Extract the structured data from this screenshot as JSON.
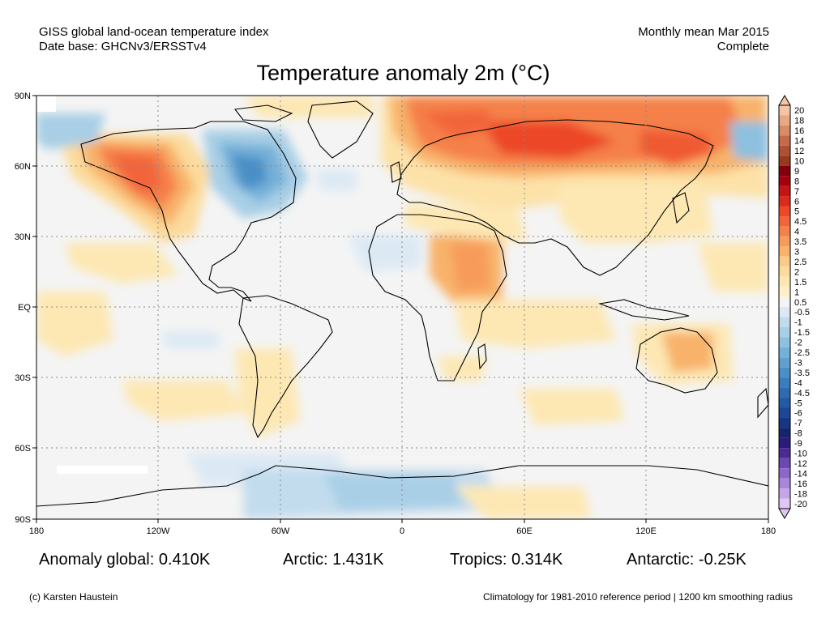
{
  "header": {
    "source_line1": "GISS global land-ocean temperature index",
    "source_line2": "Date base: GHCNv3/ERSSTv4",
    "period_line1": "Monthly mean Mar 2015",
    "period_line2": "Complete"
  },
  "title": "Temperature anomaly 2m (°C)",
  "axes": {
    "lat_labels": [
      "90N",
      "60N",
      "30N",
      "EQ",
      "30S",
      "60S",
      "90S"
    ],
    "lon_labels": [
      "180",
      "120W",
      "60W",
      "0",
      "60E",
      "120E",
      "180"
    ]
  },
  "colorbar": {
    "labels": [
      "20",
      "18",
      "16",
      "14",
      "12",
      "10",
      "9",
      "8",
      "7",
      "6",
      "5",
      "4.5",
      "4",
      "3.5",
      "3",
      "2.5",
      "2",
      "1.5",
      "1",
      "0.5",
      "-0.5",
      "-1",
      "-1.5",
      "-2",
      "-2.5",
      "-3",
      "-3.5",
      "-4",
      "-4.5",
      "-5",
      "-6",
      "-7",
      "-8",
      "-9",
      "-10",
      "-12",
      "-14",
      "-16",
      "-18",
      "-20"
    ],
    "colors": [
      "#f4c4a4",
      "#e9a884",
      "#d98a66",
      "#c46c4a",
      "#ad5034",
      "#96391f",
      "#82000c",
      "#a4000f",
      "#c41515",
      "#dc2a1d",
      "#ec4728",
      "#f2653a",
      "#f5804a",
      "#f79b5a",
      "#f8b26a",
      "#facb86",
      "#fcdb9c",
      "#fde8b4",
      "#feefc8",
      "#f4f4f4",
      "#dce9f4",
      "#c2dcee",
      "#a8cfe6",
      "#8ec0df",
      "#75b0d8",
      "#5fa0cf",
      "#4a8fc6",
      "#3a7dbc",
      "#2e6bb1",
      "#2459a5",
      "#1b4796",
      "#163582",
      "#17246c",
      "#2a1a7a",
      "#4a2b94",
      "#6d47b3",
      "#8c66c9",
      "#a986db",
      "#c3a6e8",
      "#dcc8f2"
    ]
  },
  "stats": {
    "global": "Anomaly global: 0.410K",
    "arctic": "Arctic: 1.431K",
    "tropics": "Tropics: 0.314K",
    "antarctic": "Antarctic: -0.25K"
  },
  "footer": {
    "credit": "(c) Karsten Haustein",
    "note": "Climatology for 1981-2010 reference period | 1200 km smoothing radius"
  }
}
